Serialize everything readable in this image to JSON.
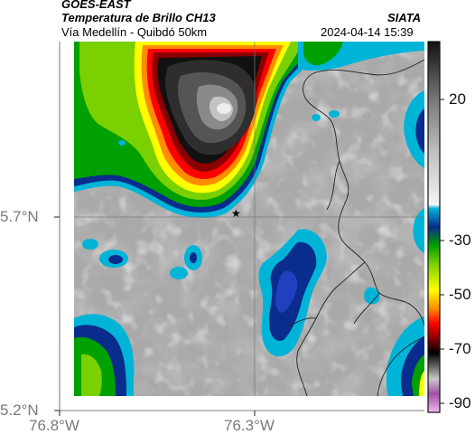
{
  "header": {
    "satellite": "GOES-EAST",
    "product": "Temperatura de Brillo CH13",
    "route": "Vía Medellín - Quibdó 50km",
    "agency": "SIATA",
    "timestamp": "2024-04-14 15:39"
  },
  "map": {
    "lat_ticks": [
      "5.7°N",
      "5.2°N"
    ],
    "lon_ticks": [
      "76.8°W",
      "76.3°W"
    ],
    "marker": {
      "symbol": "★",
      "label": ""
    }
  },
  "colorbar": {
    "labels": [
      "20",
      "-30",
      "-50",
      "-70",
      "-90"
    ],
    "stops": [
      {
        "t": 30,
        "color": "#1a1a1a"
      },
      {
        "t": 20,
        "color": "#666666"
      },
      {
        "t": 0,
        "color": "#bdbdbd"
      },
      {
        "t": -10,
        "color": "#e6e6e6"
      },
      {
        "t": -20,
        "color": "#f0f0f0"
      },
      {
        "t": -22,
        "color": "#00b4d8"
      },
      {
        "t": -27,
        "color": "#0a2c8c"
      },
      {
        "t": -35,
        "color": "#00b000"
      },
      {
        "t": -40,
        "color": "#7ad000"
      },
      {
        "t": -50,
        "color": "#ffff00"
      },
      {
        "t": -57,
        "color": "#ff8c00"
      },
      {
        "t": -62,
        "color": "#ff0000"
      },
      {
        "t": -67,
        "color": "#8b0000"
      },
      {
        "t": -72,
        "color": "#000000"
      },
      {
        "t": -78,
        "color": "#555555"
      },
      {
        "t": -82,
        "color": "#bbbbbb"
      },
      {
        "t": -86,
        "color": "#b060b0"
      },
      {
        "t": -92,
        "color": "#e8a0e8"
      }
    ]
  }
}
